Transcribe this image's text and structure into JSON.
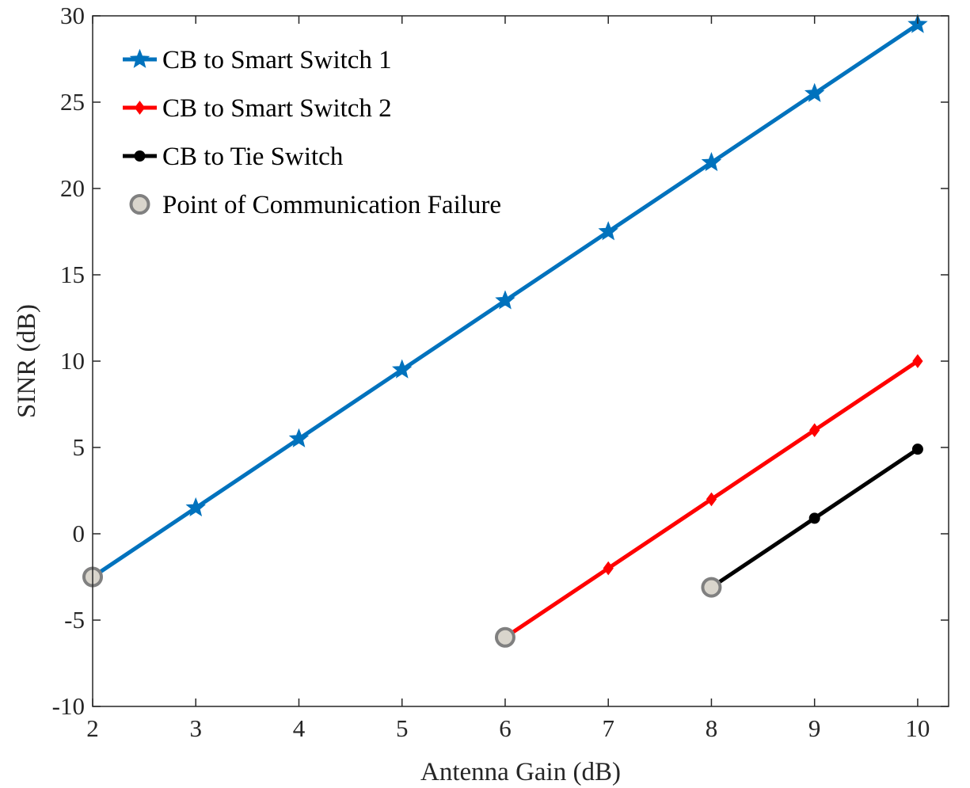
{
  "chart_data": {
    "type": "line",
    "title": "",
    "xlabel": "Antenna Gain (dB)",
    "ylabel": "SINR (dB)",
    "xlim": [
      2,
      10.3
    ],
    "ylim": [
      -10,
      30
    ],
    "xticks": [
      2,
      3,
      4,
      5,
      6,
      7,
      8,
      9,
      10
    ],
    "yticks": [
      -10,
      -5,
      0,
      5,
      10,
      15,
      20,
      25,
      30
    ],
    "grid": false,
    "legend_position": "top-left",
    "series": [
      {
        "name": "CB to Smart Switch 1",
        "color": "#0072BD",
        "marker": "star",
        "x": [
          2,
          3,
          4,
          5,
          6,
          7,
          8,
          9,
          10
        ],
        "y": [
          -2.5,
          1.5,
          5.5,
          9.5,
          13.5,
          17.5,
          21.5,
          25.5,
          29.5
        ]
      },
      {
        "name": "CB to Smart Switch 2",
        "color": "#FF0000",
        "marker": "diamond",
        "x": [
          6,
          7,
          8,
          9,
          10
        ],
        "y": [
          -6,
          -2,
          2,
          6,
          10
        ]
      },
      {
        "name": "CB to Tie Switch",
        "color": "#000000",
        "marker": "circle",
        "x": [
          8,
          9,
          10
        ],
        "y": [
          -3.1,
          0.9,
          4.9
        ]
      }
    ],
    "failure_points": {
      "name": "Point of Communication Failure",
      "color": "#D9D5CC",
      "edge_color": "#808080",
      "x": [
        2,
        6,
        8
      ],
      "y": [
        -2.5,
        -6,
        -3.1
      ]
    }
  }
}
